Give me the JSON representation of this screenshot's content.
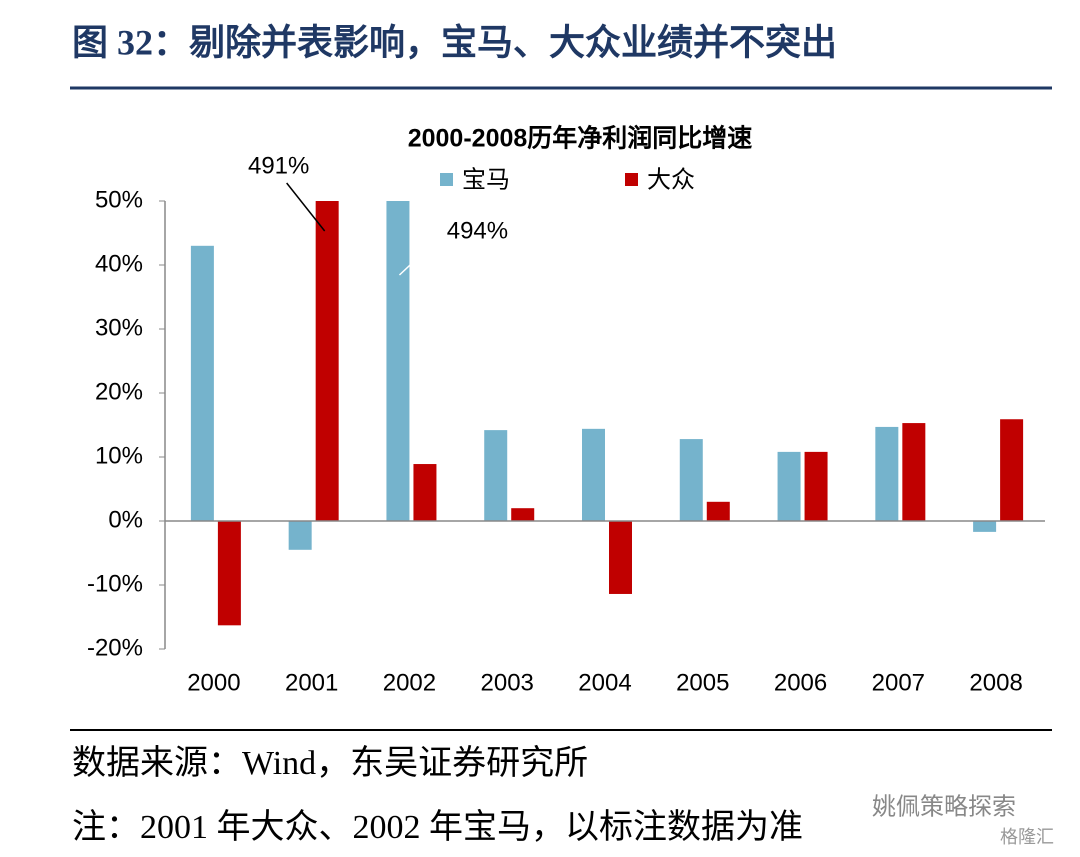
{
  "header": {
    "title": "图 32：剔除并表影响，宝马、大众业绩并不突出"
  },
  "chart_data": {
    "type": "bar",
    "title": "2000-2008历年净利润同比增速",
    "categories": [
      "2000",
      "2001",
      "2002",
      "2003",
      "2004",
      "2005",
      "2006",
      "2007",
      "2008"
    ],
    "series": [
      {
        "name": "宝马",
        "color": "#75b3cc",
        "values": [
          43,
          -4.5,
          494,
          14.2,
          14.4,
          12.8,
          10.8,
          14.7,
          -1.7
        ],
        "value_labels": [
          null,
          null,
          "494%",
          null,
          null,
          null,
          null,
          null,
          null
        ]
      },
      {
        "name": "大众",
        "color": "#c00000",
        "values": [
          -16.3,
          491,
          8.9,
          2.0,
          -11.4,
          3.0,
          10.8,
          15.3,
          15.9
        ],
        "value_labels": [
          null,
          "491%",
          null,
          null,
          null,
          null,
          null,
          null,
          null
        ]
      }
    ],
    "ylim": [
      -20,
      50
    ],
    "yticks": [
      {
        "value": -20,
        "label": "-20%"
      },
      {
        "value": -10,
        "label": "-10%"
      },
      {
        "value": 0,
        "label": "0%"
      },
      {
        "value": 10,
        "label": "10%"
      },
      {
        "value": 20,
        "label": "20%"
      },
      {
        "value": 30,
        "label": "30%"
      },
      {
        "value": 40,
        "label": "40%"
      },
      {
        "value": 50,
        "label": "50%"
      }
    ],
    "legend": "top"
  },
  "footer": {
    "source": "数据来源：Wind，东吴证券研究所",
    "note": "注：2001 年大众、2002 年宝马，以标注数据为准"
  },
  "watermark": {
    "account": "姚佩策略探索",
    "brand": "格隆汇"
  }
}
